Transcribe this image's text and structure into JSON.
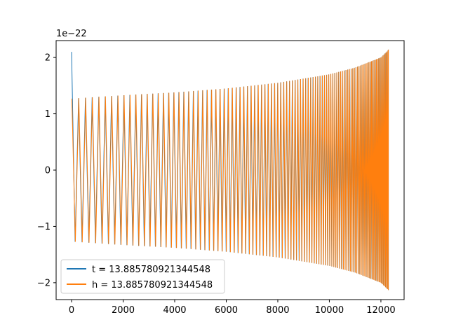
{
  "chart_data": {
    "type": "line",
    "title": "",
    "xlabel": "",
    "ylabel": "",
    "y_offset_label": "1e−22",
    "xlim": [
      -600,
      12900
    ],
    "ylim": [
      -2.3,
      2.3
    ],
    "x_ticks": [
      0,
      2000,
      4000,
      6000,
      8000,
      10000,
      12000
    ],
    "x_tick_labels": [
      "0",
      "2000",
      "4000",
      "6000",
      "8000",
      "10000",
      "12000"
    ],
    "y_ticks": [
      -2,
      -1,
      0,
      1,
      2
    ],
    "y_tick_labels": [
      "−2",
      "−1",
      "0",
      "1",
      "2"
    ],
    "grid": false,
    "legend_position": "lower-left",
    "series": [
      {
        "name": "t = 13.885780921344548",
        "color": "#1f77b4",
        "kind": "oscillation",
        "x_start": 0,
        "x_end": 12290,
        "envelope_x": [
          0,
          10,
          20,
          2000,
          4000,
          6000,
          8000,
          10000,
          11000,
          12000,
          12290
        ],
        "envelope_y": [
          2.1,
          1.3,
          1.27,
          1.33,
          1.38,
          1.45,
          1.55,
          1.7,
          1.82,
          2.0,
          2.13
        ],
        "low_envelope_y": [
          -1.15,
          -1.27,
          -1.27,
          -1.33,
          -1.38,
          -1.45,
          -1.55,
          -1.7,
          -1.82,
          -2.0,
          -2.13
        ]
      },
      {
        "name": "h = 13.885780921344548",
        "color": "#ff7f0e",
        "kind": "oscillation",
        "x_start": 10,
        "x_end": 12290,
        "envelope_x": [
          10,
          2000,
          4000,
          6000,
          8000,
          10000,
          11000,
          12000,
          12290
        ],
        "envelope_y": [
          1.27,
          1.33,
          1.38,
          1.45,
          1.55,
          1.7,
          1.82,
          2.0,
          2.13
        ],
        "low_envelope_y": [
          -1.27,
          -1.33,
          -1.38,
          -1.45,
          -1.55,
          -1.7,
          -1.82,
          -2.0,
          -2.13
        ]
      }
    ]
  }
}
